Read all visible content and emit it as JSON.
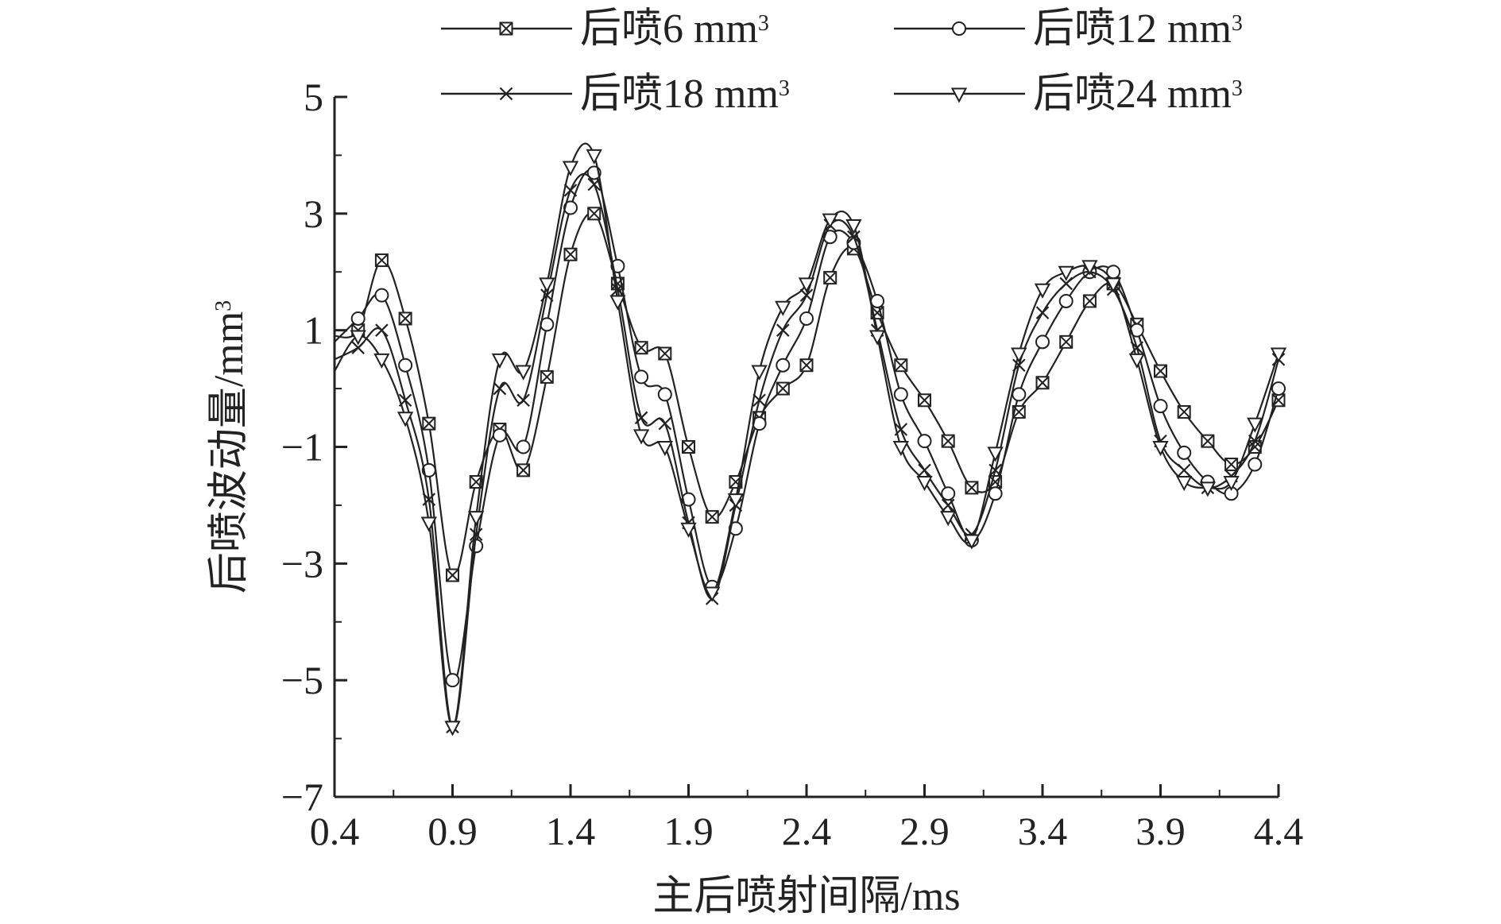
{
  "chart_data": {
    "type": "line",
    "xlabel": "主后喷射间隔/ms",
    "ylabel_main": "后喷波动量/mm",
    "ylabel_sup": "3",
    "xlim": [
      0.4,
      4.4
    ],
    "ylim": [
      -7,
      5
    ],
    "x_ticks": [
      "0.4",
      "0.9",
      "1.4",
      "1.9",
      "2.4",
      "2.9",
      "3.4",
      "3.9",
      "4.4"
    ],
    "y_ticks": [
      "5",
      "3",
      "1",
      "−1",
      "−3",
      "−5",
      "−7"
    ],
    "x": [
      0.4,
      0.5,
      0.6,
      0.7,
      0.8,
      0.9,
      1.0,
      1.1,
      1.2,
      1.3,
      1.4,
      1.5,
      1.6,
      1.7,
      1.8,
      1.9,
      2.0,
      2.1,
      2.2,
      2.3,
      2.4,
      2.5,
      2.6,
      2.7,
      2.8,
      2.9,
      3.0,
      3.1,
      3.2,
      3.3,
      3.4,
      3.5,
      3.6,
      3.7,
      3.8,
      3.9,
      4.0,
      4.1,
      4.2,
      4.3,
      4.4
    ],
    "series": [
      {
        "name": "后喷6 mm",
        "name_sup": "3",
        "marker": "boxx",
        "values": [
          0.9,
          1.0,
          2.2,
          1.2,
          -0.6,
          -3.2,
          -1.6,
          -0.7,
          -1.4,
          0.2,
          2.3,
          3.0,
          1.8,
          0.7,
          0.6,
          -1.0,
          -2.2,
          -1.6,
          -0.5,
          0.0,
          0.4,
          1.9,
          2.4,
          1.3,
          0.4,
          -0.2,
          -0.9,
          -1.7,
          -1.6,
          -0.4,
          0.1,
          0.8,
          1.5,
          1.8,
          1.1,
          0.3,
          -0.4,
          -0.9,
          -1.3,
          -1.0,
          -0.2
        ]
      },
      {
        "name": "后喷12 mm",
        "name_sup": "3",
        "marker": "circle",
        "values": [
          0.8,
          1.2,
          1.6,
          0.4,
          -1.4,
          -5.0,
          -2.7,
          -0.8,
          -1.0,
          1.1,
          3.1,
          3.7,
          2.1,
          0.2,
          -0.1,
          -1.9,
          -3.4,
          -2.4,
          -0.6,
          0.4,
          1.2,
          2.6,
          2.5,
          1.5,
          -0.1,
          -0.9,
          -1.8,
          -2.6,
          -1.8,
          -0.1,
          0.8,
          1.5,
          2.0,
          2.0,
          1.0,
          -0.3,
          -1.1,
          -1.6,
          -1.8,
          -1.3,
          0.0
        ]
      },
      {
        "name": "后喷18 mm",
        "name_sup": "3",
        "marker": "x",
        "values": [
          0.5,
          0.7,
          1.0,
          -0.2,
          -1.9,
          -5.8,
          -2.5,
          0.0,
          -0.2,
          1.6,
          3.4,
          3.5,
          1.7,
          -0.5,
          -0.6,
          -2.3,
          -3.6,
          -2.0,
          -0.2,
          1.0,
          1.6,
          2.8,
          2.6,
          1.0,
          -0.7,
          -1.4,
          -2.0,
          -2.5,
          -1.4,
          0.4,
          1.3,
          1.8,
          2.0,
          1.7,
          0.7,
          -0.9,
          -1.4,
          -1.7,
          -1.5,
          -0.9,
          0.5
        ]
      },
      {
        "name": "后喷24 mm",
        "name_sup": "3",
        "marker": "tri",
        "values": [
          0.3,
          0.9,
          0.5,
          -0.5,
          -2.3,
          -5.8,
          -2.2,
          0.5,
          0.3,
          1.8,
          3.8,
          4.0,
          1.5,
          -0.8,
          -1.0,
          -2.4,
          -3.5,
          -1.9,
          0.3,
          1.4,
          1.8,
          2.9,
          2.8,
          0.9,
          -1.0,
          -1.6,
          -2.2,
          -2.6,
          -1.1,
          0.6,
          1.7,
          2.0,
          2.1,
          1.8,
          0.5,
          -1.0,
          -1.6,
          -1.7,
          -1.6,
          -0.6,
          0.6
        ]
      }
    ]
  }
}
